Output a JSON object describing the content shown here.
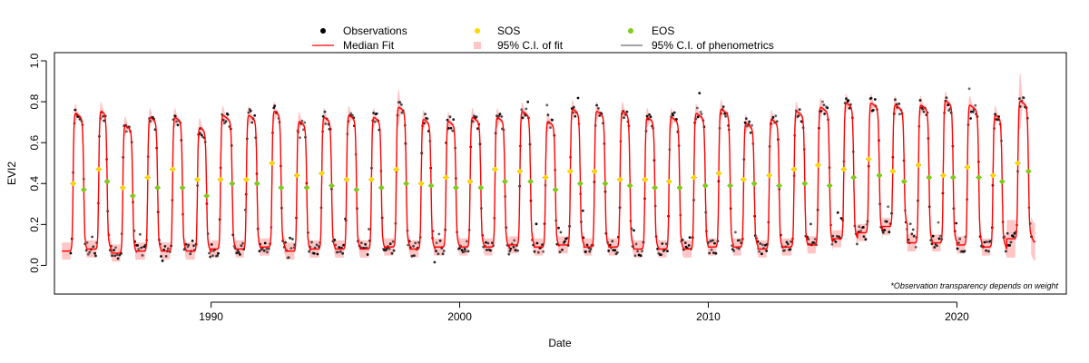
{
  "chart_data": {
    "type": "line",
    "title": "",
    "xlabel": "Date",
    "ylabel": "EVI2",
    "xlim": [
      1983.7,
      2024.4
    ],
    "ylim": [
      -0.14,
      1.04
    ],
    "x_ticks": [
      1990,
      2000,
      2010,
      2020
    ],
    "y_ticks": [
      0.0,
      0.2,
      0.4,
      0.6,
      0.8,
      1.0
    ],
    "y_tick_labels": [
      "0.0",
      "0.2",
      "0.4",
      "0.6",
      "0.8",
      "1.0"
    ],
    "grid": false,
    "legend_position": "top-center",
    "legend": [
      {
        "label": "Observations",
        "marker": "dot",
        "color": "#000000"
      },
      {
        "label": "Median Fit",
        "marker": "line",
        "color": "#ff0000"
      },
      {
        "label": "SOS",
        "marker": "dot",
        "color": "#ffd700"
      },
      {
        "label": "95% C.I. of fit",
        "marker": "square",
        "color": "#ffc6c6"
      },
      {
        "label": "EOS",
        "marker": "dot",
        "color": "#7fcc1a"
      },
      {
        "label": "95% C.I. of phenometrics",
        "marker": "line",
        "color": "#444444"
      }
    ],
    "note": "*Observation transparency depends on weight",
    "colors": {
      "fit": "#ff0000",
      "ci_band": "#ffc6c6",
      "observations": "#000000",
      "sos": "#ffd700",
      "eos": "#7fcc1a"
    },
    "seasons": {
      "years": [
        1984,
        1985,
        1986,
        1987,
        1988,
        1989,
        1990,
        1991,
        1992,
        1993,
        1994,
        1995,
        1996,
        1997,
        1998,
        1999,
        2000,
        2001,
        2002,
        2003,
        2004,
        2005,
        2006,
        2007,
        2008,
        2009,
        2010,
        2011,
        2012,
        2013,
        2014,
        2015,
        2016,
        2017,
        2018,
        2019,
        2020,
        2021,
        2022
      ],
      "peak": [
        0.75,
        0.76,
        0.69,
        0.73,
        0.73,
        0.68,
        0.74,
        0.74,
        0.76,
        0.71,
        0.73,
        0.74,
        0.73,
        0.78,
        0.72,
        0.71,
        0.73,
        0.73,
        0.76,
        0.71,
        0.77,
        0.76,
        0.76,
        0.73,
        0.73,
        0.75,
        0.77,
        0.7,
        0.72,
        0.76,
        0.78,
        0.8,
        0.8,
        0.79,
        0.79,
        0.81,
        0.79,
        0.74,
        0.81
      ],
      "base": [
        0.07,
        0.08,
        0.06,
        0.07,
        0.07,
        0.07,
        0.08,
        0.08,
        0.09,
        0.07,
        0.08,
        0.08,
        0.08,
        0.09,
        0.08,
        0.09,
        0.09,
        0.09,
        0.1,
        0.09,
        0.1,
        0.09,
        0.09,
        0.08,
        0.08,
        0.08,
        0.09,
        0.09,
        0.08,
        0.09,
        0.1,
        0.13,
        0.16,
        0.19,
        0.11,
        0.11,
        0.1,
        0.09,
        0.13
      ],
      "sos_x": [
        1984.45,
        1985.48,
        1986.45,
        1987.45,
        1988.45,
        1989.45,
        1990.38,
        1991.42,
        1992.45,
        1993.45,
        1994.45,
        1995.45,
        1996.45,
        1997.45,
        1998.45,
        1999.45,
        2000.42,
        2001.42,
        2002.42,
        2003.45,
        2004.45,
        2005.42,
        2006.45,
        2007.45,
        2008.42,
        2009.42,
        2010.42,
        2011.42,
        2012.45,
        2013.45,
        2014.42,
        2015.45,
        2016.45,
        2017.42,
        2018.45,
        2019.45,
        2020.42,
        2021.45,
        2022.45
      ],
      "sos_y": [
        0.4,
        0.47,
        0.38,
        0.43,
        0.47,
        0.42,
        0.42,
        0.42,
        0.5,
        0.44,
        0.45,
        0.42,
        0.42,
        0.47,
        0.4,
        0.43,
        0.41,
        0.47,
        0.46,
        0.43,
        0.46,
        0.46,
        0.42,
        0.42,
        0.41,
        0.43,
        0.45,
        0.42,
        0.44,
        0.47,
        0.49,
        0.47,
        0.52,
        0.46,
        0.49,
        0.44,
        0.48,
        0.44,
        0.5
      ],
      "eos_x": [
        1984.88,
        1985.82,
        1986.85,
        1987.85,
        1988.85,
        1989.82,
        1990.85,
        1991.85,
        1992.82,
        1993.85,
        1994.85,
        1995.85,
        1996.85,
        1997.85,
        1998.85,
        1999.85,
        2000.85,
        2001.82,
        2002.85,
        2003.85,
        2004.85,
        2005.85,
        2006.85,
        2007.85,
        2008.85,
        2009.88,
        2010.88,
        2011.85,
        2012.85,
        2013.88,
        2014.88,
        2015.85,
        2016.88,
        2017.88,
        2018.88,
        2019.85,
        2020.88,
        2021.82,
        2022.88
      ],
      "eos_y": [
        0.37,
        0.41,
        0.34,
        0.38,
        0.38,
        0.34,
        0.4,
        0.4,
        0.38,
        0.38,
        0.39,
        0.37,
        0.38,
        0.4,
        0.39,
        0.38,
        0.38,
        0.41,
        0.41,
        0.37,
        0.4,
        0.4,
        0.39,
        0.38,
        0.38,
        0.39,
        0.39,
        0.4,
        0.39,
        0.4,
        0.39,
        0.43,
        0.44,
        0.41,
        0.43,
        0.43,
        0.43,
        0.41,
        0.46
      ]
    }
  }
}
